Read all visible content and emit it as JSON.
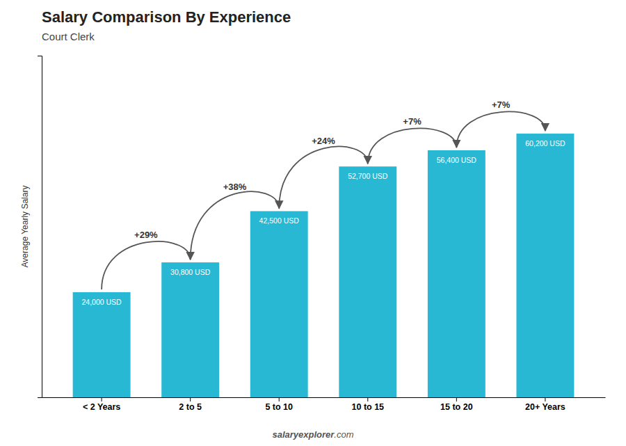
{
  "chart_data": {
    "type": "bar",
    "title": "Salary Comparison By Experience",
    "subtitle": "Court Clerk",
    "ylabel": "Average Yearly Salary",
    "categories": [
      "< 2 Years",
      "2 to 5",
      "5 to 10",
      "10 to 15",
      "15 to 20",
      "20+ Years"
    ],
    "values": [
      24000,
      30800,
      42500,
      52700,
      56400,
      60200
    ],
    "value_labels": [
      "24,000 USD",
      "30,800 USD",
      "42,500 USD",
      "52,700 USD",
      "56,400 USD",
      "60,200 USD"
    ],
    "data_labels": true,
    "annotations": [
      "+29%",
      "+38%",
      "+24%",
      "+7%",
      "+7%"
    ],
    "footer": [
      "salary",
      "explorer",
      ".com"
    ],
    "color": "#29b8d4",
    "ylim": [
      0,
      78000
    ],
    "tick_labels": "x",
    "grid": false
  }
}
